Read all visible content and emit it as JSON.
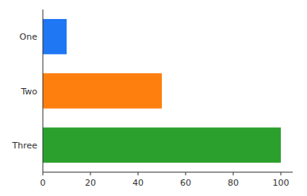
{
  "chart_data": {
    "type": "bar",
    "orientation": "horizontal",
    "categories": [
      "One",
      "Two",
      "Three"
    ],
    "values": [
      10,
      50,
      100
    ],
    "colors": [
      "#1f77f4",
      "#ff7f0e",
      "#2ca02c"
    ],
    "xlim": [
      0,
      105
    ],
    "xticks": [
      0,
      20,
      40,
      60,
      80,
      100
    ],
    "grid": false
  }
}
